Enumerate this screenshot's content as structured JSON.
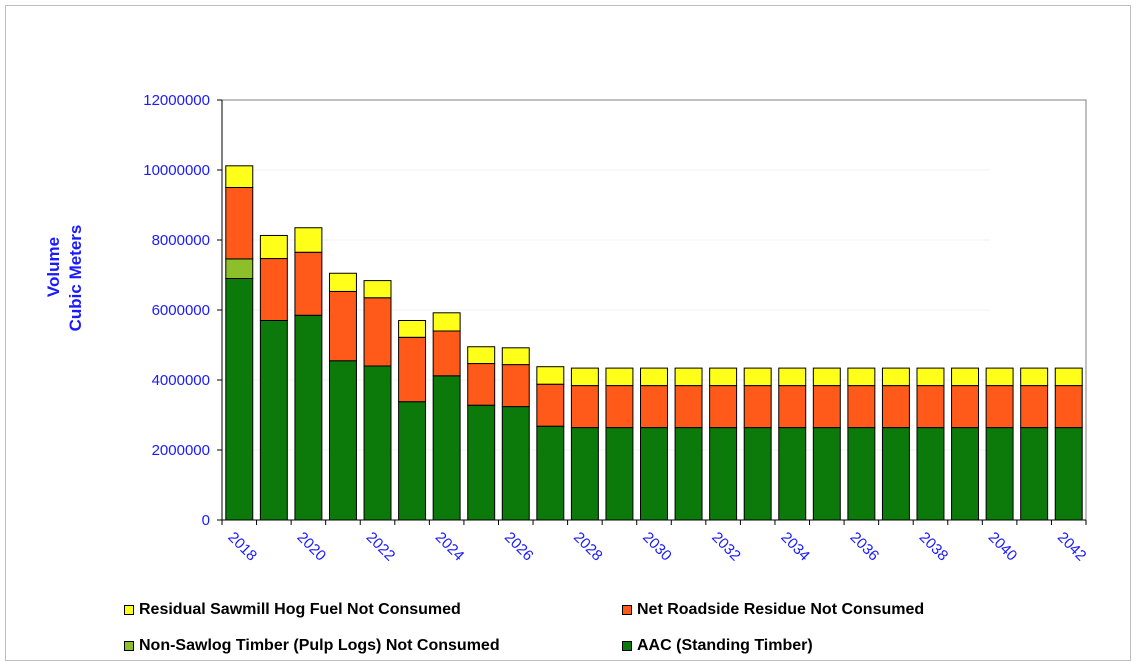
{
  "chart_data": {
    "type": "bar",
    "stacked": true,
    "title": "",
    "ylabel": [
      "Volume",
      "Cubic Meters"
    ],
    "xlabel": "",
    "ylim": [
      0,
      12000000
    ],
    "yticks": [
      0,
      2000000,
      4000000,
      6000000,
      8000000,
      10000000,
      12000000
    ],
    "ytick_labels": [
      "0",
      "2000000",
      "4000000",
      "6000000",
      "8000000",
      "10000000",
      "12000000"
    ],
    "categories": [
      "2018",
      "2019",
      "2020",
      "2021",
      "2022",
      "2023",
      "2024",
      "2025",
      "2026",
      "2027",
      "2028",
      "2029",
      "2030",
      "2031",
      "2032",
      "2033",
      "2034",
      "2035",
      "2036",
      "2037",
      "2038",
      "2039",
      "2040",
      "2041",
      "2042"
    ],
    "xtick_labels": [
      "2018",
      "2020",
      "2022",
      "2024",
      "2026",
      "2028",
      "2030",
      "2032",
      "2034",
      "2036",
      "2038",
      "2040",
      "2042"
    ],
    "grid": true,
    "legend_position": "bottom",
    "series": [
      {
        "name": "AAC (Standing Timber)",
        "color": "#0b7a0b",
        "values": [
          6900000,
          5700000,
          5850000,
          4550000,
          4400000,
          3380000,
          4120000,
          3280000,
          3240000,
          2680000,
          2640000,
          2640000,
          2640000,
          2640000,
          2640000,
          2640000,
          2640000,
          2640000,
          2640000,
          2640000,
          2640000,
          2640000,
          2640000,
          2640000,
          2640000
        ]
      },
      {
        "name": "Non-Sawlog Timber (Pulp Logs) Not Consumed",
        "color": "#8cbf2a",
        "values": [
          560000,
          0,
          0,
          0,
          0,
          0,
          0,
          0,
          0,
          0,
          0,
          0,
          0,
          0,
          0,
          0,
          0,
          0,
          0,
          0,
          0,
          0,
          0,
          0,
          0
        ]
      },
      {
        "name": "Net Roadside Residue Not Consumed",
        "color": "#ff5a1a",
        "values": [
          2040000,
          1770000,
          1800000,
          1980000,
          1950000,
          1840000,
          1280000,
          1190000,
          1200000,
          1200000,
          1200000,
          1200000,
          1200000,
          1200000,
          1200000,
          1200000,
          1200000,
          1200000,
          1200000,
          1200000,
          1200000,
          1200000,
          1200000,
          1200000,
          1200000
        ]
      },
      {
        "name": "Residual Sawmill Hog Fuel Not Consumed",
        "color": "#ffff1a",
        "values": [
          620000,
          660000,
          700000,
          520000,
          490000,
          480000,
          520000,
          480000,
          480000,
          500000,
          500000,
          500000,
          500000,
          500000,
          500000,
          500000,
          500000,
          500000,
          500000,
          500000,
          500000,
          500000,
          500000,
          500000,
          500000
        ]
      }
    ],
    "legend": [
      {
        "label": "Residual Sawmill Hog Fuel Not Consumed",
        "color": "#ffff1a"
      },
      {
        "label": "Net Roadside Residue Not Consumed",
        "color": "#ff5a1a"
      },
      {
        "label": "Non-Sawlog Timber (Pulp Logs) Not Consumed",
        "color": "#8cbf2a"
      },
      {
        "label": "AAC (Standing Timber)",
        "color": "#0b7a0b"
      }
    ]
  }
}
